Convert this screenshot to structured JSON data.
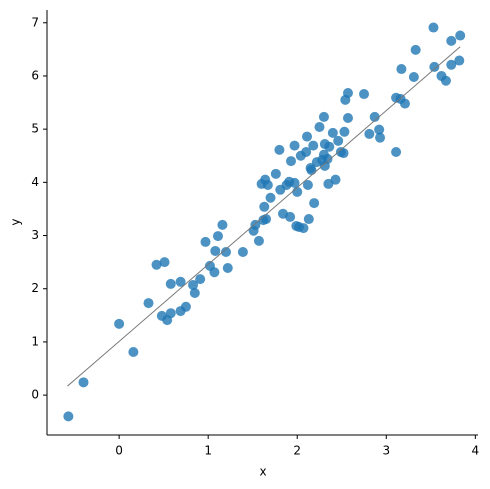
{
  "chart_data": {
    "type": "scatter",
    "x_label": "x",
    "y_label": "y",
    "xlim": [
      -0.81,
      4.03
    ],
    "ylim": [
      -0.75,
      7.24
    ],
    "xticks": [
      0,
      1,
      2,
      3,
      4
    ],
    "yticks": [
      0,
      1,
      2,
      3,
      4,
      5,
      6,
      7
    ],
    "color": "#1f77b4",
    "line_color": "#777777",
    "x": [
      -0.57,
      -0.4,
      0,
      0.16,
      0.33,
      0.42,
      0.51,
      0.48,
      0.54,
      0.58,
      0.58,
      0.69,
      0.69,
      0.75,
      0.83,
      0.85,
      0.91,
      0.97,
      1.02,
      1.07,
      1.08,
      1.11,
      1.16,
      1.2,
      1.22,
      1.39,
      1.51,
      1.53,
      1.57,
      1.6,
      1.62,
      1.63,
      1.64,
      1.65,
      1.67,
      1.7,
      1.76,
      1.8,
      1.81,
      1.84,
      1.88,
      1.91,
      1.92,
      1.93,
      1.97,
      1.97,
      1.99,
      2.0,
      2.02,
      2.04,
      2.07,
      2.1,
      2.11,
      2.12,
      2.13,
      2.15,
      2.16,
      2.18,
      2.19,
      2.22,
      2.25,
      2.28,
      2.3,
      2.3,
      2.31,
      2.31,
      2.34,
      2.35,
      2.36,
      2.4,
      2.43,
      2.46,
      2.49,
      2.53,
      2.52,
      2.54,
      2.57,
      2.57,
      2.75,
      2.81,
      2.87,
      2.92,
      2.93,
      3.11,
      3.11,
      3.17,
      3.16,
      3.21,
      3.31,
      3.33,
      3.53,
      3.54,
      3.62,
      3.67,
      3.73,
      3.73,
      3.83,
      3.82
    ],
    "y": [
      -0.4,
      0.24,
      1.34,
      0.81,
      1.73,
      2.45,
      2.5,
      1.49,
      1.41,
      2.09,
      1.54,
      2.13,
      1.58,
      1.66,
      2.07,
      1.92,
      2.18,
      2.88,
      2.43,
      2.31,
      2.71,
      2.99,
      3.2,
      2.69,
      2.39,
      2.69,
      3.09,
      3.2,
      2.9,
      3.97,
      3.29,
      3.54,
      4.05,
      3.31,
      3.95,
      3.71,
      4.16,
      4.61,
      3.86,
      3.41,
      3.95,
      4.01,
      3.35,
      4.4,
      3.99,
      4.69,
      3.18,
      3.82,
      3.16,
      4.5,
      3.14,
      4.57,
      4.86,
      3.95,
      3.31,
      4.27,
      4.23,
      4.69,
      3.61,
      4.38,
      5.04,
      4.42,
      4.52,
      5.23,
      4.72,
      4.31,
      4.44,
      3.97,
      4.67,
      4.93,
      4.05,
      4.78,
      4.57,
      4.95,
      4.55,
      5.55,
      5.68,
      5.21,
      5.66,
      4.91,
      5.23,
      4.99,
      4.84,
      4.57,
      5.59,
      6.13,
      5.57,
      5.48,
      5.98,
      6.49,
      6.91,
      6.17,
      6.0,
      5.91,
      6.66,
      6.21,
      6.76,
      6.29
    ],
    "fit_line": {
      "x": [
        -0.58,
        3.83
      ],
      "y": [
        0.17,
        6.55
      ]
    }
  }
}
